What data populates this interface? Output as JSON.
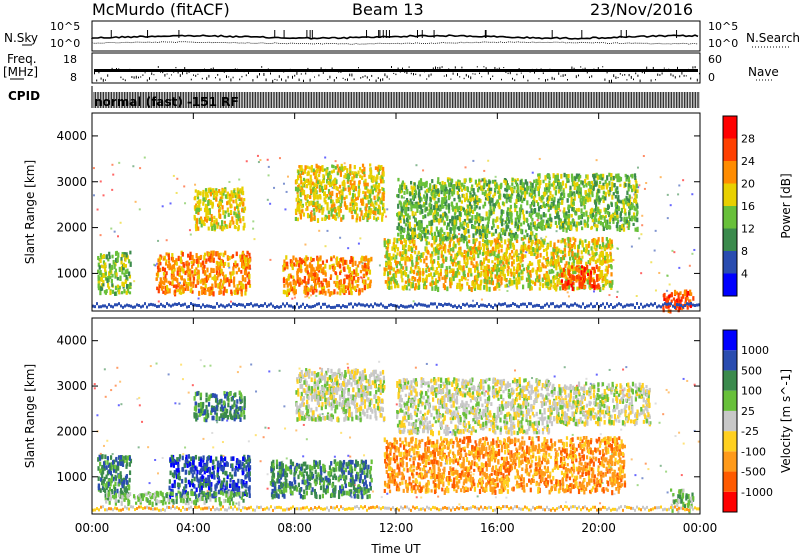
{
  "header": {
    "station": "McMurdo (fitACF)",
    "beam": "Beam 13",
    "date": "23/Nov/2016"
  },
  "strips": {
    "nsky_label": "N.Sky",
    "nsearch_label": "N.Search",
    "noise_top": "10^5",
    "noise_bottom": "10^0",
    "freq_label": "Freq.",
    "freq_unit": "[MHz]",
    "freq_ticks": [
      "18",
      "8"
    ],
    "nave_label": "Nave",
    "nave_ticks": [
      "60",
      "0"
    ],
    "cpid_label": "CPID",
    "cpid_text": "normal (fast) -151 RF"
  },
  "chart_data": [
    {
      "type": "heatmap",
      "name": "power",
      "ylabel": "Slant Range [km]",
      "xlabel": "Time UT",
      "x_range_hours": [
        0,
        24
      ],
      "ylim": [
        180,
        4500
      ],
      "yticks": [
        1000,
        2000,
        3000,
        4000
      ],
      "xtick_labels": [
        "00:00",
        "04:00",
        "08:00",
        "12:00",
        "16:00",
        "20:00",
        "00:00"
      ],
      "colorbar": {
        "label": "Power [dB]",
        "ticks": [
          "28",
          "24",
          "20",
          "16",
          "12",
          "8",
          "4"
        ],
        "colors": [
          "#0000ff",
          "#2a4db0",
          "#3b8a4c",
          "#68c03a",
          "#e8d000",
          "#ff8c00",
          "#ff4000",
          "#ff0000"
        ]
      },
      "echo_regions": [
        {
          "t0": 0.2,
          "t1": 1.5,
          "r0": 600,
          "r1": 1500,
          "level": 3
        },
        {
          "t0": 2.5,
          "t1": 6.2,
          "r0": 600,
          "r1": 1500,
          "level": 5
        },
        {
          "t0": 4.0,
          "t1": 6.0,
          "r0": 2000,
          "r1": 2900,
          "level": 4
        },
        {
          "t0": 7.5,
          "t1": 11.0,
          "r0": 600,
          "r1": 1400,
          "level": 5
        },
        {
          "t0": 8.0,
          "t1": 11.5,
          "r0": 2200,
          "r1": 3400,
          "level": 4
        },
        {
          "t0": 11.5,
          "t1": 20.5,
          "r0": 700,
          "r1": 1800,
          "level": 4
        },
        {
          "t0": 12.0,
          "t1": 17.5,
          "r0": 1800,
          "r1": 3100,
          "level": 3
        },
        {
          "t0": 17.5,
          "t1": 21.5,
          "r0": 2000,
          "r1": 3200,
          "level": 3
        },
        {
          "t0": 18.5,
          "t1": 20.0,
          "r0": 700,
          "r1": 1200,
          "level": 6
        },
        {
          "t0": 22.5,
          "t1": 23.7,
          "r0": 200,
          "r1": 650,
          "level": 6
        }
      ]
    },
    {
      "type": "heatmap",
      "name": "velocity",
      "ylabel": "Slant Range [km]",
      "xlabel": "Time UT",
      "x_range_hours": [
        0,
        24
      ],
      "ylim": [
        180,
        4500
      ],
      "yticks": [
        1000,
        2000,
        3000,
        4000
      ],
      "xtick_labels": [
        "00:00",
        "04:00",
        "08:00",
        "12:00",
        "16:00",
        "20:00",
        "00:00"
      ],
      "colorbar": {
        "label": "Velocity [m s^-1]",
        "ticks": [
          "1000",
          "500",
          "100",
          "25",
          "-25",
          "-100",
          "-500",
          "-1000"
        ],
        "colors": [
          "#ff0000",
          "#ff5a00",
          "#ff9a1a",
          "#ffd020",
          "#c8c8c8",
          "#68c03a",
          "#3b8a4c",
          "#2a4db0",
          "#0000ff"
        ]
      },
      "echo_regions": [
        {
          "t0": 0.2,
          "t1": 1.5,
          "r0": 600,
          "r1": 1500,
          "level": 6
        },
        {
          "t0": 3.0,
          "t1": 6.2,
          "r0": 600,
          "r1": 1500,
          "level": 7
        },
        {
          "t0": 4.0,
          "t1": 6.0,
          "r0": 2300,
          "r1": 2900,
          "level": 6
        },
        {
          "t0": 7.0,
          "t1": 11.0,
          "r0": 600,
          "r1": 1400,
          "level": 6
        },
        {
          "t0": 8.0,
          "t1": 11.5,
          "r0": 2300,
          "r1": 3400,
          "level": 4
        },
        {
          "t0": 11.5,
          "t1": 21.0,
          "r0": 700,
          "r1": 1900,
          "level": 2
        },
        {
          "t0": 12.0,
          "t1": 18.0,
          "r0": 2000,
          "r1": 3200,
          "level": 4
        },
        {
          "t0": 18.0,
          "t1": 22.0,
          "r0": 2200,
          "r1": 3100,
          "level": 4
        },
        {
          "t0": 0.5,
          "t1": 6.0,
          "r0": 450,
          "r1": 700,
          "level": 5
        },
        {
          "t0": 22.8,
          "t1": 23.7,
          "r0": 300,
          "r1": 750,
          "level": 5
        }
      ]
    }
  ]
}
